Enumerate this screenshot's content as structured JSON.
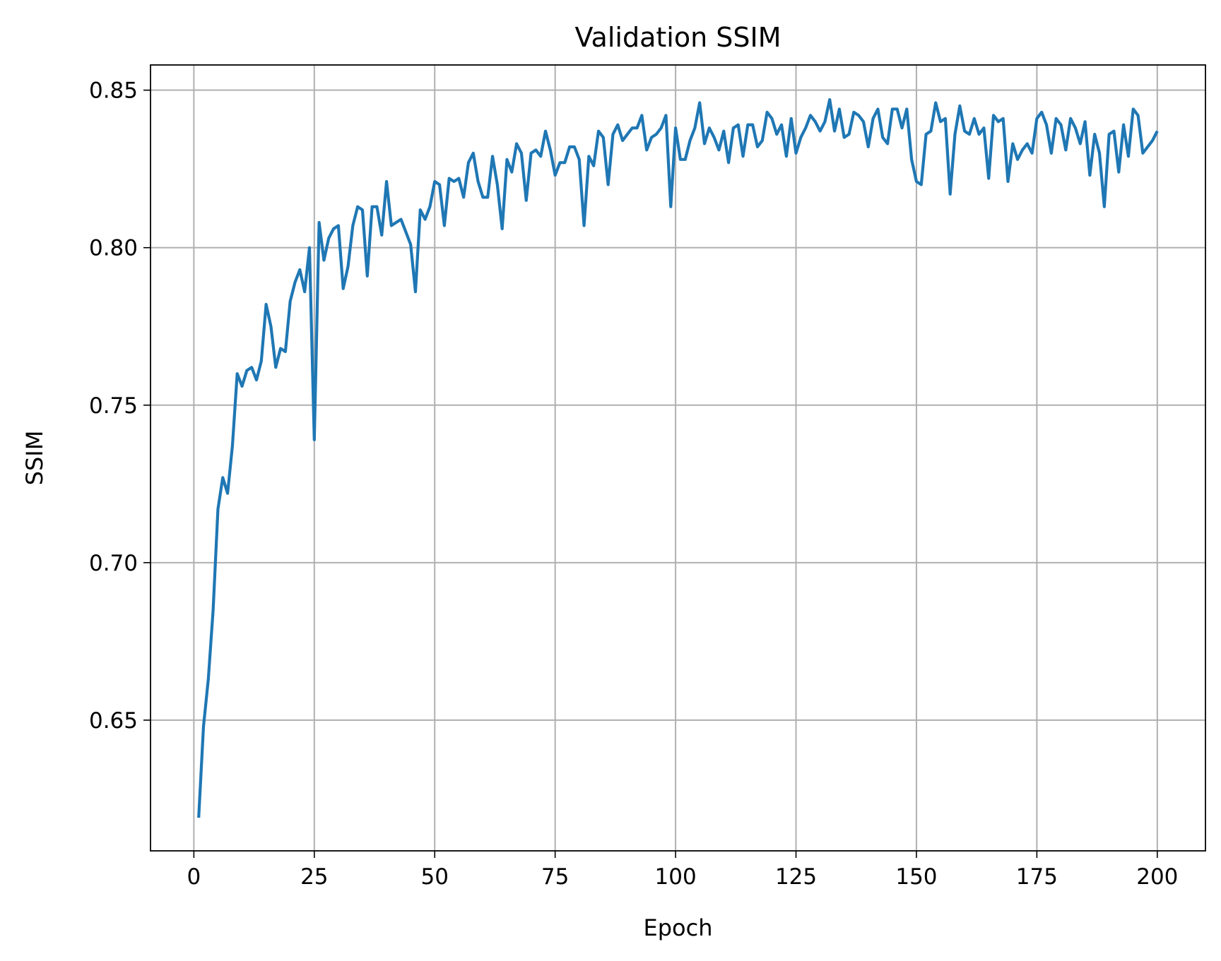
{
  "chart_data": {
    "type": "line",
    "title": "Validation SSIM",
    "xlabel": "Epoch",
    "ylabel": "SSIM",
    "xlim": [
      -9,
      210
    ],
    "ylim": [
      0.6085,
      0.858
    ],
    "x_ticks": [
      0,
      25,
      50,
      75,
      100,
      125,
      150,
      175,
      200
    ],
    "x_tick_labels": [
      "0",
      "25",
      "50",
      "75",
      "100",
      "125",
      "150",
      "175",
      "200"
    ],
    "y_ticks": [
      0.65,
      0.7,
      0.75,
      0.8,
      0.85
    ],
    "y_tick_labels": [
      "0.65",
      "0.70",
      "0.75",
      "0.80",
      "0.85"
    ],
    "grid": true,
    "colors": {
      "line": "#1f77b4"
    },
    "series": [
      {
        "x_start": 1,
        "x_step": 1,
        "values": [
          0.619,
          0.648,
          0.663,
          0.685,
          0.717,
          0.727,
          0.722,
          0.737,
          0.76,
          0.756,
          0.761,
          0.762,
          0.758,
          0.764,
          0.782,
          0.775,
          0.762,
          0.768,
          0.767,
          0.783,
          0.789,
          0.793,
          0.786,
          0.8,
          0.739,
          0.808,
          0.796,
          0.803,
          0.806,
          0.807,
          0.787,
          0.794,
          0.807,
          0.813,
          0.812,
          0.791,
          0.813,
          0.813,
          0.804,
          0.821,
          0.807,
          0.808,
          0.809,
          0.805,
          0.801,
          0.786,
          0.812,
          0.809,
          0.813,
          0.821,
          0.82,
          0.807,
          0.822,
          0.821,
          0.822,
          0.816,
          0.827,
          0.83,
          0.821,
          0.816,
          0.816,
          0.829,
          0.82,
          0.806,
          0.828,
          0.824,
          0.833,
          0.83,
          0.815,
          0.83,
          0.831,
          0.829,
          0.837,
          0.831,
          0.823,
          0.827,
          0.827,
          0.832,
          0.832,
          0.828,
          0.807,
          0.829,
          0.826,
          0.837,
          0.835,
          0.82,
          0.836,
          0.839,
          0.834,
          0.836,
          0.838,
          0.838,
          0.842,
          0.831,
          0.835,
          0.836,
          0.838,
          0.842,
          0.813,
          0.838,
          0.828,
          0.828,
          0.834,
          0.838,
          0.846,
          0.833,
          0.838,
          0.835,
          0.831,
          0.837,
          0.827,
          0.838,
          0.839,
          0.829,
          0.839,
          0.839,
          0.832,
          0.834,
          0.843,
          0.841,
          0.836,
          0.839,
          0.829,
          0.841,
          0.83,
          0.835,
          0.838,
          0.842,
          0.84,
          0.837,
          0.84,
          0.847,
          0.837,
          0.844,
          0.835,
          0.836,
          0.843,
          0.842,
          0.84,
          0.832,
          0.841,
          0.844,
          0.835,
          0.833,
          0.844,
          0.844,
          0.838,
          0.844,
          0.828,
          0.821,
          0.82,
          0.836,
          0.837,
          0.846,
          0.84,
          0.841,
          0.817,
          0.836,
          0.845,
          0.837,
          0.836,
          0.841,
          0.836,
          0.838,
          0.822,
          0.842,
          0.84,
          0.841,
          0.821,
          0.833,
          0.828,
          0.831,
          0.833,
          0.83,
          0.841,
          0.843,
          0.839,
          0.83,
          0.841,
          0.839,
          0.831,
          0.841,
          0.838,
          0.833,
          0.84,
          0.823,
          0.836,
          0.83,
          0.813,
          0.836,
          0.837,
          0.824,
          0.839,
          0.829,
          0.844,
          0.842,
          0.83,
          0.832,
          0.834,
          0.837
        ]
      }
    ]
  }
}
